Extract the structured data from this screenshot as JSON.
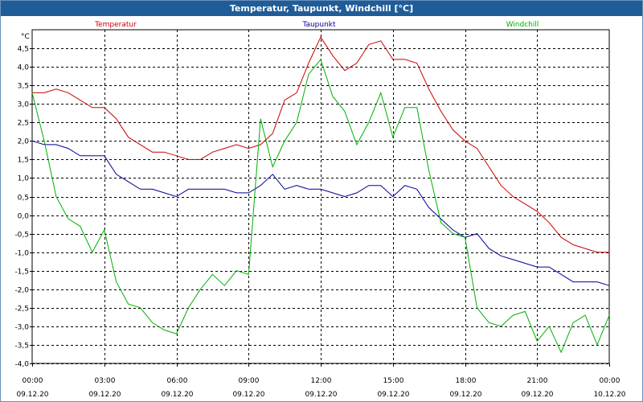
{
  "window": {
    "title": "Temperatur, Taupunkt, Windchill [°C]"
  },
  "chart_data": {
    "type": "line",
    "title": "Temperatur, Taupunkt, Windchill [°C]",
    "ylabel": "°C",
    "xlabel": "",
    "grid": true,
    "ylim": [
      -4.0,
      5.0
    ],
    "yticks": [
      "-4,0",
      "-3,5",
      "-3,0",
      "-2,5",
      "-2,0",
      "-1,5",
      "-1,0",
      "-0,5",
      "0,0",
      "0,5",
      "1,0",
      "1,5",
      "2,0",
      "2,5",
      "3,0",
      "3,5",
      "4,0",
      "4,5"
    ],
    "ytick_values": [
      -4.0,
      -3.5,
      -3.0,
      -2.5,
      -2.0,
      -1.5,
      -1.0,
      -0.5,
      0.0,
      0.5,
      1.0,
      1.5,
      2.0,
      2.5,
      3.0,
      3.5,
      4.0,
      4.5
    ],
    "xlim": [
      0,
      24
    ],
    "xticks": [
      {
        "hour": 0,
        "time": "00:00",
        "date": "09.12.20"
      },
      {
        "hour": 3,
        "time": "03:00",
        "date": "09.12.20"
      },
      {
        "hour": 6,
        "time": "06:00",
        "date": "09.12.20"
      },
      {
        "hour": 9,
        "time": "09:00",
        "date": "09.12.20"
      },
      {
        "hour": 12,
        "time": "12:00",
        "date": "09.12.20"
      },
      {
        "hour": 15,
        "time": "15:00",
        "date": "09.12.20"
      },
      {
        "hour": 18,
        "time": "18:00",
        "date": "09.12.20"
      },
      {
        "hour": 21,
        "time": "21:00",
        "date": "09.12.20"
      },
      {
        "hour": 24,
        "time": "00:00",
        "date": "10.12.20"
      }
    ],
    "series": [
      {
        "name": "Temperatur",
        "color": "#cc0000",
        "x": [
          0,
          0.5,
          1,
          1.5,
          2,
          2.5,
          3,
          3.5,
          4,
          4.5,
          5,
          5.5,
          6,
          6.5,
          7,
          7.5,
          8,
          8.5,
          9,
          9.5,
          10,
          10.5,
          11,
          11.5,
          12,
          12.5,
          13,
          13.5,
          14,
          14.5,
          15,
          15.5,
          16,
          16.5,
          17,
          17.5,
          18,
          18.5,
          19,
          19.5,
          20,
          20.5,
          21,
          21.5,
          22,
          22.5,
          23,
          23.5,
          24
        ],
        "values": [
          3.3,
          3.3,
          3.4,
          3.3,
          3.1,
          2.9,
          2.9,
          2.6,
          2.1,
          1.9,
          1.7,
          1.7,
          1.6,
          1.5,
          1.5,
          1.7,
          1.8,
          1.9,
          1.8,
          1.9,
          2.2,
          3.1,
          3.3,
          4.1,
          4.8,
          4.3,
          3.9,
          4.1,
          4.6,
          4.7,
          4.2,
          4.2,
          4.1,
          3.4,
          2.8,
          2.3,
          2.0,
          1.8,
          1.3,
          0.8,
          0.5,
          0.3,
          0.1,
          -0.2,
          -0.6,
          -0.8,
          -0.9,
          -1.0,
          -1.0
        ]
      },
      {
        "name": "Taupunkt",
        "color": "#00009a",
        "x": [
          0,
          0.5,
          1,
          1.5,
          2,
          2.5,
          3,
          3.5,
          4,
          4.5,
          5,
          5.5,
          6,
          6.5,
          7,
          7.5,
          8,
          8.5,
          9,
          9.5,
          10,
          10.5,
          11,
          11.5,
          12,
          12.5,
          13,
          13.5,
          14,
          14.5,
          15,
          15.5,
          16,
          16.5,
          17,
          17.5,
          18,
          18.5,
          19,
          19.5,
          20,
          20.5,
          21,
          21.5,
          22,
          22.5,
          23,
          23.5,
          24
        ],
        "values": [
          2.0,
          1.9,
          1.9,
          1.8,
          1.6,
          1.6,
          1.6,
          1.1,
          0.9,
          0.7,
          0.7,
          0.6,
          0.5,
          0.7,
          0.7,
          0.7,
          0.7,
          0.6,
          0.6,
          0.8,
          1.1,
          0.7,
          0.8,
          0.7,
          0.7,
          0.6,
          0.5,
          0.6,
          0.8,
          0.8,
          0.5,
          0.8,
          0.7,
          0.2,
          -0.1,
          -0.4,
          -0.6,
          -0.5,
          -0.9,
          -1.1,
          -1.2,
          -1.3,
          -1.4,
          -1.4,
          -1.6,
          -1.8,
          -1.8,
          -1.8,
          -1.9
        ]
      },
      {
        "name": "Windchill",
        "color": "#00b000",
        "x": [
          0,
          0.5,
          1,
          1.5,
          2,
          2.5,
          3,
          3.5,
          4,
          4.5,
          5,
          5.5,
          6,
          6.5,
          7,
          7.5,
          8,
          8.5,
          9,
          9.5,
          10,
          10.5,
          11,
          11.5,
          12,
          12.5,
          13,
          13.5,
          14,
          14.5,
          15,
          15.5,
          16,
          16.5,
          17,
          17.5,
          18,
          18.5,
          19,
          19.5,
          20,
          20.5,
          21,
          21.5,
          22,
          22.5,
          23,
          23.5,
          24
        ],
        "values": [
          3.3,
          2.0,
          0.5,
          -0.1,
          -0.3,
          -1.0,
          -0.4,
          -1.8,
          -2.4,
          -2.5,
          -2.9,
          -3.1,
          -3.2,
          -2.5,
          -2.0,
          -1.6,
          -1.9,
          -1.5,
          -1.6,
          2.6,
          1.3,
          2.0,
          2.5,
          3.8,
          4.2,
          3.2,
          2.8,
          1.9,
          2.5,
          3.3,
          2.1,
          2.9,
          2.9,
          1.2,
          -0.2,
          -0.5,
          -0.6,
          -2.5,
          -2.9,
          -3.0,
          -2.7,
          -2.6,
          -3.4,
          -3.0,
          -3.7,
          -2.9,
          -2.7,
          -3.5,
          -2.7
        ]
      }
    ]
  }
}
